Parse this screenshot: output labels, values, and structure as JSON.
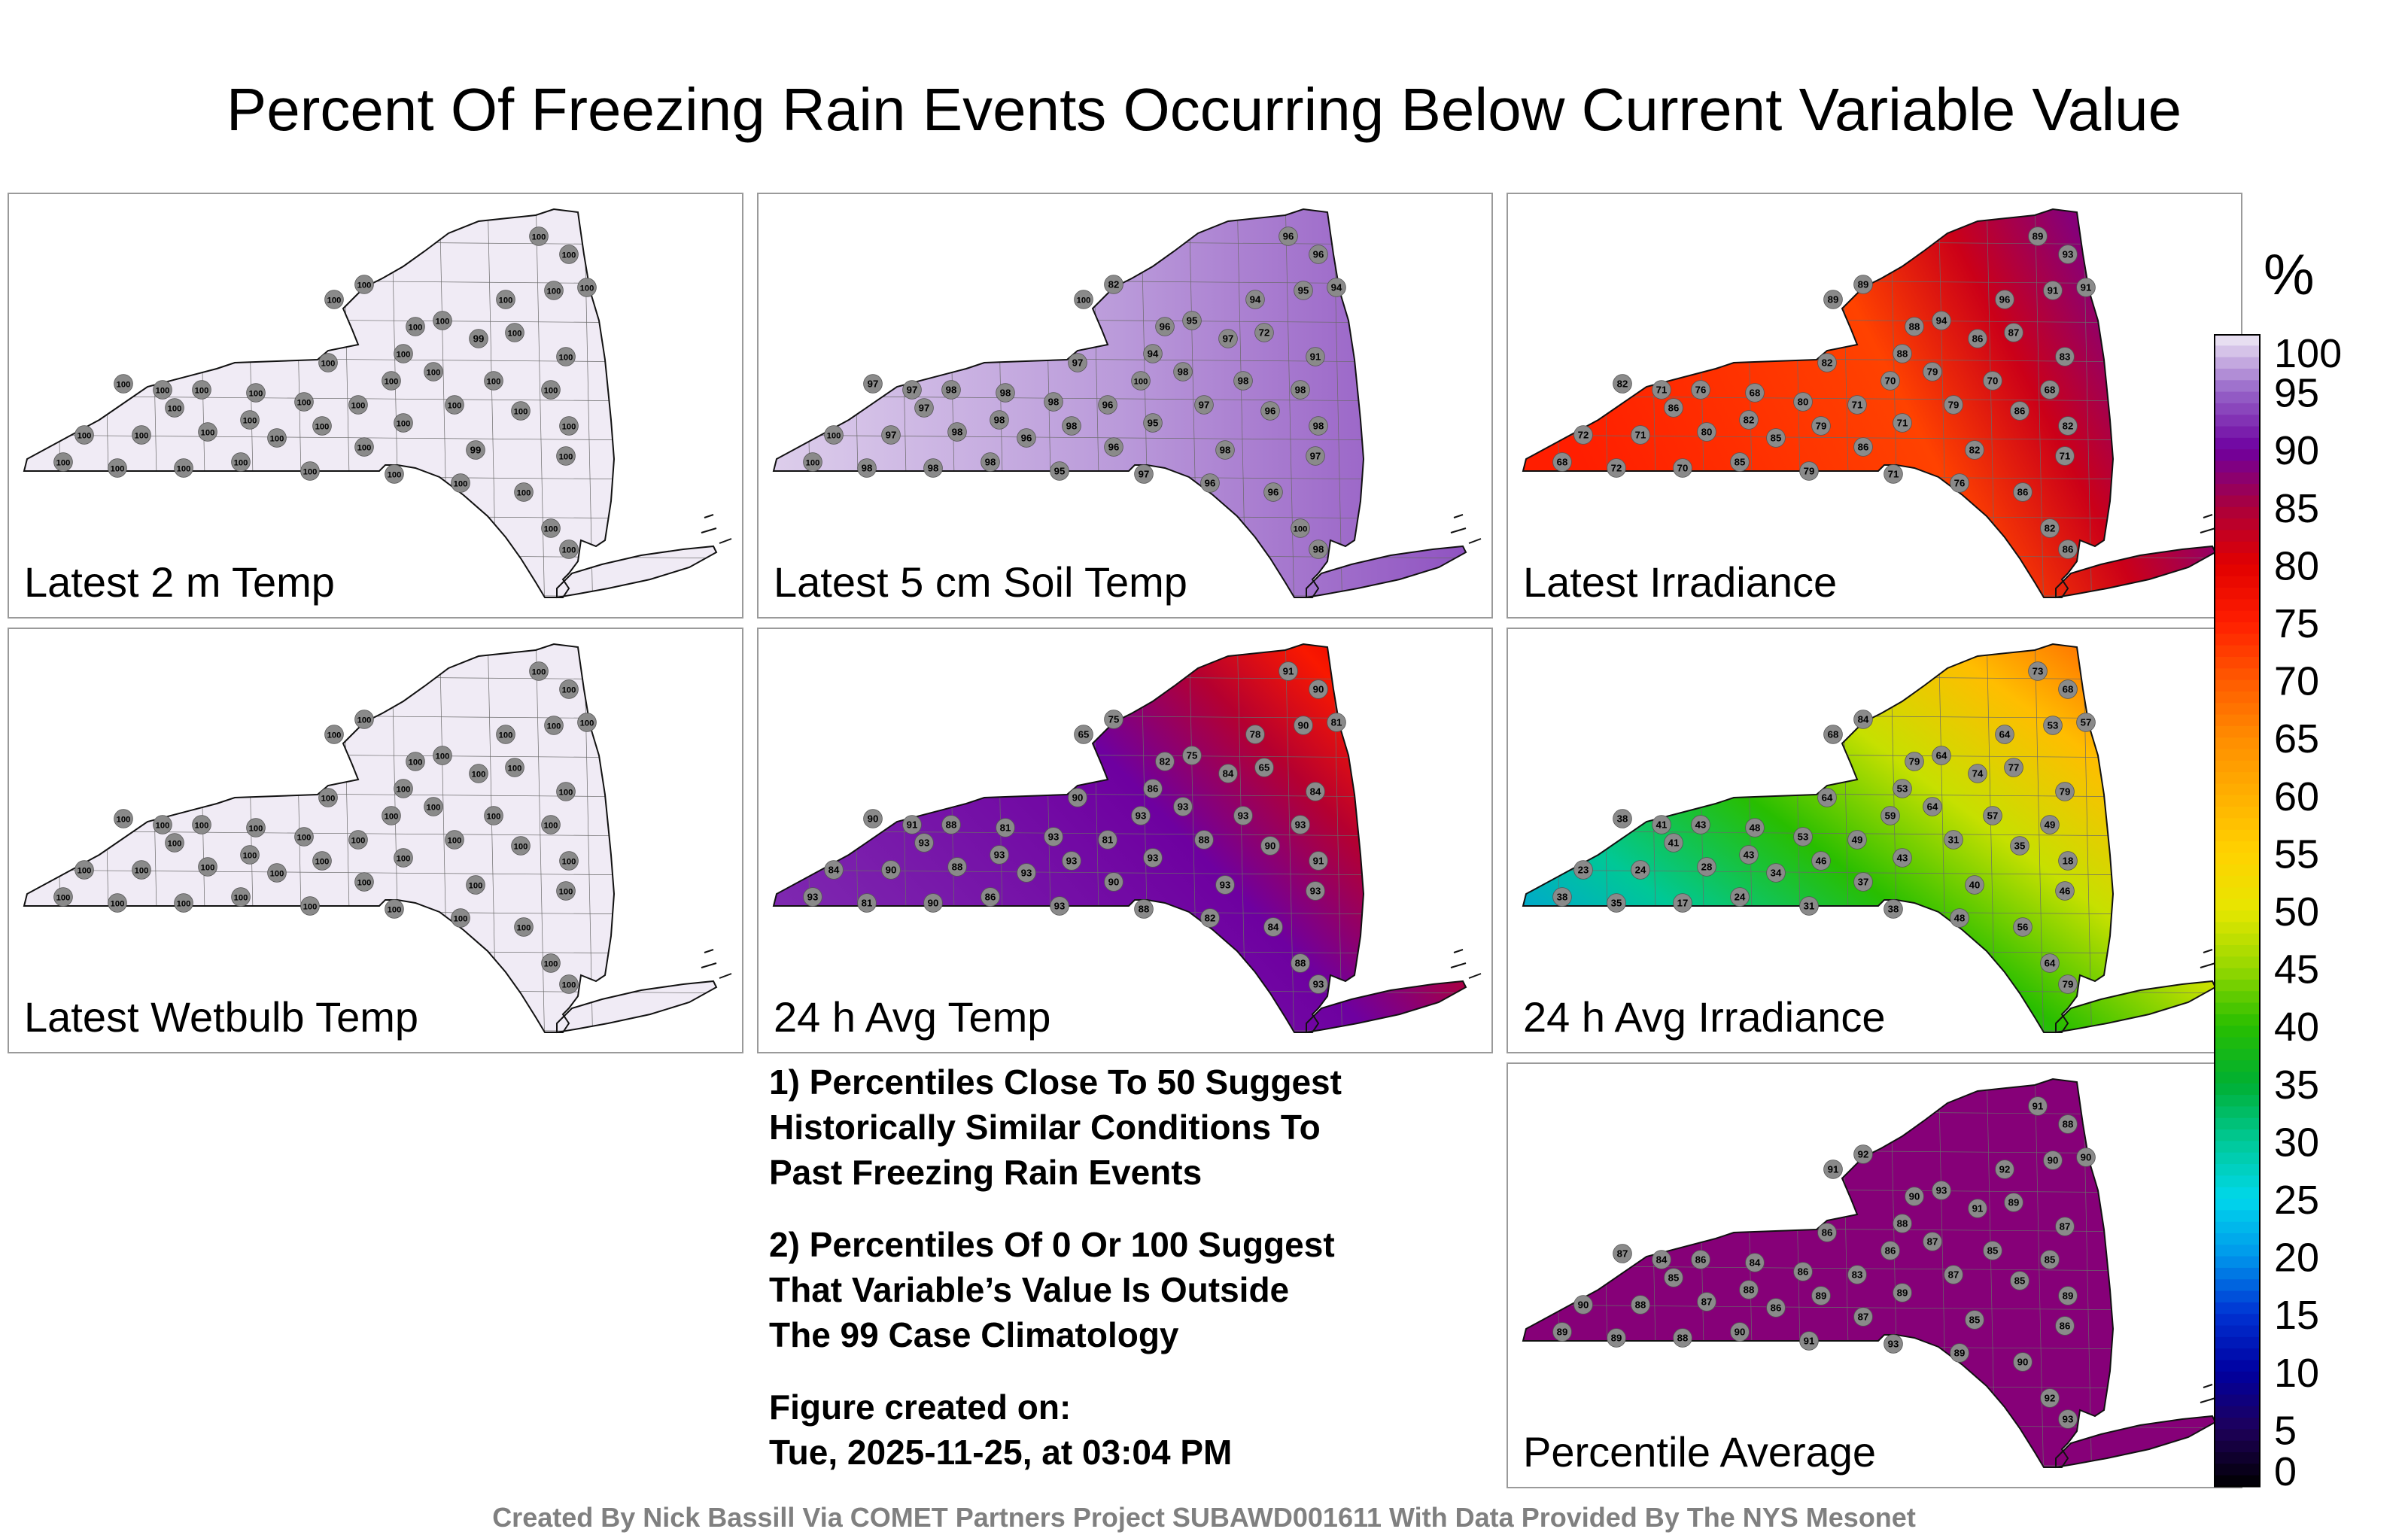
{
  "title": "Percent Of Freezing Rain Events Occurring Below Current Variable Value",
  "chart_data": [
    {
      "type": "heatmap",
      "title": "Latest 2 m Temp",
      "field": "uniform",
      "field_value": 100,
      "labels": [
        100,
        100,
        100,
        100,
        100,
        100,
        100,
        100,
        100,
        99,
        100,
        100,
        100,
        100,
        100,
        100,
        100,
        100,
        100,
        100,
        100,
        100,
        100,
        100,
        100,
        100,
        100,
        100,
        100,
        100,
        100,
        100,
        100,
        100,
        100,
        100,
        99,
        100,
        100,
        100,
        100,
        100,
        100,
        100,
        100,
        100,
        100,
        100
      ]
    },
    {
      "type": "heatmap",
      "title": "Latest 5 cm Soil Temp",
      "field": "west-light-east-darker",
      "field_value": 96,
      "labels": [
        96,
        96,
        95,
        94,
        94,
        95,
        82,
        100,
        96,
        97,
        72,
        91,
        94,
        97,
        98,
        100,
        98,
        98,
        98,
        97,
        97,
        98,
        98,
        96,
        97,
        96,
        97,
        98,
        98,
        95,
        98,
        100,
        97,
        98,
        96,
        96,
        98,
        97,
        100,
        98,
        98,
        98,
        95,
        97,
        96,
        96,
        100,
        98
      ]
    },
    {
      "type": "heatmap",
      "title": "Latest Irradiance",
      "field": "west-red-east-purple",
      "field_value": 80,
      "labels": [
        89,
        93,
        91,
        91,
        96,
        94,
        89,
        89,
        88,
        86,
        87,
        83,
        88,
        82,
        79,
        70,
        70,
        68,
        80,
        82,
        71,
        76,
        68,
        71,
        79,
        86,
        86,
        82,
        79,
        71,
        82,
        72,
        71,
        80,
        85,
        86,
        82,
        71,
        68,
        72,
        70,
        85,
        79,
        71,
        76,
        86,
        82,
        86
      ]
    },
    {
      "type": "heatmap",
      "title": "Latest Wetbulb Temp",
      "field": "uniform",
      "field_value": 100,
      "labels": [
        100,
        100,
        100,
        100,
        100,
        100,
        100,
        100,
        100,
        100,
        100,
        100,
        100,
        100,
        100,
        100,
        100,
        100,
        100,
        100,
        100,
        100,
        100,
        100,
        100,
        100,
        100,
        100,
        100,
        100,
        100,
        100,
        100,
        100,
        100,
        100,
        100,
        100,
        100,
        100,
        100,
        100,
        100,
        100,
        100,
        100,
        100,
        100
      ]
    },
    {
      "type": "heatmap",
      "title": "24 h Avg Temp",
      "field": "west-purple-ne-red",
      "field_value": 88,
      "labels": [
        91,
        90,
        90,
        81,
        78,
        75,
        75,
        65,
        82,
        84,
        65,
        84,
        86,
        90,
        93,
        93,
        93,
        93,
        93,
        90,
        91,
        88,
        81,
        81,
        88,
        90,
        93,
        93,
        93,
        93,
        91,
        84,
        90,
        88,
        93,
        90,
        93,
        93,
        93,
        81,
        90,
        86,
        93,
        88,
        82,
        84,
        88,
        93
      ]
    },
    {
      "type": "heatmap",
      "title": "24 h Avg Irradiance",
      "field": "west-cyan-ne-orange",
      "field_value": 50,
      "labels": [
        73,
        68,
        53,
        57,
        64,
        64,
        84,
        68,
        79,
        74,
        77,
        79,
        53,
        64,
        64,
        59,
        57,
        49,
        53,
        38,
        41,
        43,
        48,
        49,
        31,
        35,
        41,
        43,
        46,
        43,
        18,
        23,
        24,
        28,
        34,
        37,
        40,
        46,
        38,
        35,
        17,
        24,
        31,
        38,
        48,
        56,
        64,
        79
      ]
    },
    {
      "type": "heatmap",
      "title": "Percentile Average",
      "field": "uniform-purple",
      "field_value": 88,
      "labels": [
        91,
        88,
        90,
        90,
        92,
        93,
        92,
        91,
        90,
        91,
        89,
        87,
        88,
        86,
        87,
        86,
        85,
        85,
        86,
        87,
        84,
        86,
        84,
        83,
        87,
        85,
        85,
        88,
        89,
        89,
        89,
        90,
        88,
        87,
        86,
        87,
        85,
        86,
        89,
        89,
        88,
        90,
        91,
        93,
        89,
        90,
        92,
        93
      ]
    }
  ],
  "notes": {
    "line1": "1) Percentiles Close To 50 Suggest",
    "line2": "Historically Similar Conditions To",
    "line3": "Past Freezing Rain Events",
    "line4": "2) Percentiles Of 0 Or 100 Suggest",
    "line5": "That Variable’s Value Is Outside",
    "line6": "The 99 Case Climatology",
    "line7": "Figure created on:",
    "line8": "Tue, 2025-11-25, at 03:04 PM"
  },
  "colorbar": {
    "unit": "%",
    "ticks": [
      100,
      95,
      90,
      85,
      80,
      75,
      70,
      65,
      60,
      55,
      50,
      45,
      40,
      35,
      30,
      25,
      20,
      15,
      10,
      5,
      0
    ]
  },
  "footer": "Created By Nick Bassill Via COMET Partners Project SUBAWD001611 With Data Provided By The NYS Mesonet"
}
